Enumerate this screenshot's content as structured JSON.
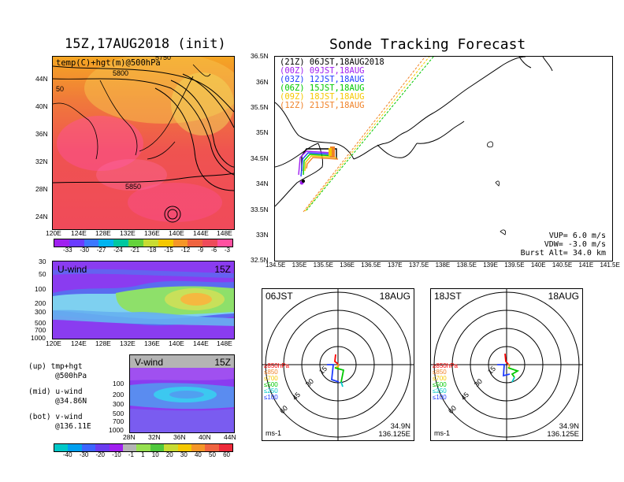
{
  "left_title": "15Z,17AUG2018 (init)",
  "right_title": "Sonde Tracking Forecast",
  "upper_panel": {
    "label": "temp(C)+hgt(m)@500hPa",
    "lon_ticks": [
      "120E",
      "124E",
      "128E",
      "132E",
      "136E",
      "140E",
      "144E",
      "148E"
    ],
    "lat_ticks": [
      "44N",
      "40N",
      "36N",
      "32N",
      "28N",
      "24N"
    ],
    "contour_labels": [
      "5800",
      "5850",
      "50",
      "5750"
    ],
    "colorbar_ticks": [
      "-33",
      "-30",
      "-27",
      "-24",
      "-21",
      "-18",
      "-15",
      "-12",
      "-9",
      "-6",
      "-3"
    ]
  },
  "u_panel": {
    "label": "U-wind",
    "time": "15Z",
    "p_ticks": [
      "30",
      "50",
      "100",
      "200",
      "300",
      "500",
      "700",
      "1000"
    ],
    "lon_ticks": [
      "120E",
      "124E",
      "128E",
      "132E",
      "136E",
      "140E",
      "144E",
      "148E"
    ]
  },
  "v_panel": {
    "label": "V-wind",
    "time": "15Z",
    "p_ticks": [
      "100",
      "200",
      "300",
      "500",
      "700",
      "1000"
    ],
    "lat_ticks": [
      "28N",
      "32N",
      "36N",
      "40N",
      "44N"
    ],
    "colorbar_ticks": [
      "-40",
      "-30",
      "-20",
      "-10",
      "-1",
      "1",
      "10",
      "20",
      "30",
      "40",
      "50",
      "60"
    ]
  },
  "notes": {
    "up_1": "(up) tmp+hgt",
    "up_2": "@500hPa",
    "mid_1": "(mid) u-wind",
    "mid_2": "@34.86N",
    "bot_1": "(bot) v-wind",
    "bot_2": "@136.11E"
  },
  "track_map": {
    "lon_ticks": [
      "134.5E",
      "135E",
      "135.5E",
      "136E",
      "136.5E",
      "137E",
      "137.5E",
      "138E",
      "138.5E",
      "139E",
      "139.5E",
      "140E",
      "140.5E",
      "141E",
      "141.5E"
    ],
    "lat_ticks": [
      "36.5N",
      "36N",
      "35.5N",
      "35N",
      "34.5N",
      "34N",
      "33.5N",
      "33N",
      "32.5N"
    ],
    "legend": [
      {
        "text": "(21Z)  06JST,18AUG2018",
        "color": "#000000"
      },
      {
        "text": "(00Z)  09JST,18AUG",
        "color": "#a020f0"
      },
      {
        "text": "(03Z)  12JST,18AUG",
        "color": "#1e3cff"
      },
      {
        "text": "(06Z)  15JST,18AUG",
        "color": "#00c800"
      },
      {
        "text": "(09Z)  18JST,18AUG",
        "color": "#f5c800"
      },
      {
        "text": "(12Z)  21JST,18AUG",
        "color": "#f08228"
      }
    ],
    "params": {
      "vup": "VUP=  6.0 m/s",
      "vdw": "VDW= -3.0 m/s",
      "burst": "Burst Alt= 34.0 km"
    }
  },
  "hodographs": [
    {
      "time": "06JST",
      "date": "18AUG",
      "lat": "34.9N",
      "lon": "136.125E",
      "unit": "ms-1",
      "rings": [
        "15",
        "30",
        "45",
        "60"
      ],
      "legend": [
        {
          "t": "≥850hPa",
          "c": "#ff0000"
        },
        {
          "t": "≤850",
          "c": "#f08228"
        },
        {
          "t": "≤700",
          "c": "#f5c800"
        },
        {
          "t": "≤500",
          "c": "#00c800"
        },
        {
          "t": "≤250",
          "c": "#00c8c8"
        },
        {
          "t": "≤100",
          "c": "#1e3cff"
        }
      ]
    },
    {
      "time": "18JST",
      "date": "18AUG",
      "lat": "34.9N",
      "lon": "136.125E",
      "unit": "ms-1",
      "rings": [
        "15",
        "30",
        "45",
        "60"
      ],
      "legend": [
        {
          "t": "≥850hPa",
          "c": "#ff0000"
        },
        {
          "t": "≤850",
          "c": "#f08228"
        },
        {
          "t": "≤700",
          "c": "#f5c800"
        },
        {
          "t": "≤500",
          "c": "#00c800"
        },
        {
          "t": "≤250",
          "c": "#00c8c8"
        },
        {
          "t": "≤100",
          "c": "#1e3cff"
        }
      ]
    }
  ],
  "chart_data": {
    "type": "heatmap",
    "title": "Sonde Tracking Forecast",
    "track_start_lon": 136.125,
    "track_start_lat": 34.9
  }
}
